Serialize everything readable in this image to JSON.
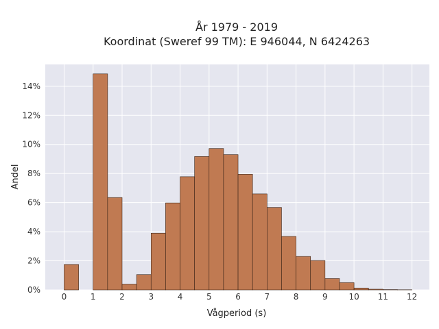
{
  "chart_data": {
    "type": "bar",
    "title_lines": [
      "År 1979 - 2019",
      "Koordinat (Sweref 99 TM): E 946044, N 6424263"
    ],
    "xlabel": "Vågperiod (s)",
    "ylabel": "Andel",
    "bin_width": 0.5,
    "bins": [
      {
        "x0": 0.0,
        "value": 1.75
      },
      {
        "x0": 0.5,
        "value": 0.0
      },
      {
        "x0": 1.0,
        "value": 14.85
      },
      {
        "x0": 1.5,
        "value": 6.35
      },
      {
        "x0": 2.0,
        "value": 0.4
      },
      {
        "x0": 2.5,
        "value": 1.05
      },
      {
        "x0": 3.0,
        "value": 3.9
      },
      {
        "x0": 3.5,
        "value": 5.98
      },
      {
        "x0": 4.0,
        "value": 7.78
      },
      {
        "x0": 4.5,
        "value": 9.17
      },
      {
        "x0": 5.0,
        "value": 9.72
      },
      {
        "x0": 5.5,
        "value": 9.3
      },
      {
        "x0": 6.0,
        "value": 7.95
      },
      {
        "x0": 6.5,
        "value": 6.6
      },
      {
        "x0": 7.0,
        "value": 5.67
      },
      {
        "x0": 7.5,
        "value": 3.68
      },
      {
        "x0": 8.0,
        "value": 2.3
      },
      {
        "x0": 8.5,
        "value": 2.02
      },
      {
        "x0": 9.0,
        "value": 0.78
      },
      {
        "x0": 9.5,
        "value": 0.5
      },
      {
        "x0": 10.0,
        "value": 0.13
      },
      {
        "x0": 10.5,
        "value": 0.05
      },
      {
        "x0": 11.0,
        "value": 0.02
      },
      {
        "x0": 11.5,
        "value": 0.01
      }
    ],
    "xlim": [
      -0.65,
      12.6
    ],
    "ylim": [
      0,
      15.5
    ],
    "xticks": [
      0,
      1,
      2,
      3,
      4,
      5,
      6,
      7,
      8,
      9,
      10,
      11,
      12
    ],
    "xtick_labels": [
      "0",
      "1",
      "2",
      "3",
      "4",
      "5",
      "6",
      "7",
      "8",
      "9",
      "10",
      "11",
      "12"
    ],
    "yticks": [
      0,
      2,
      4,
      6,
      8,
      10,
      12,
      14
    ],
    "ytick_labels": [
      "0%",
      "2%",
      "4%",
      "6%",
      "8%",
      "10%",
      "12%",
      "14%"
    ],
    "grid": true,
    "colors": {
      "bar_fill": "#c07a52",
      "bar_stroke": "#3a2418",
      "plot_bg": "#e5e6ef",
      "grid": "#ffffff"
    }
  }
}
